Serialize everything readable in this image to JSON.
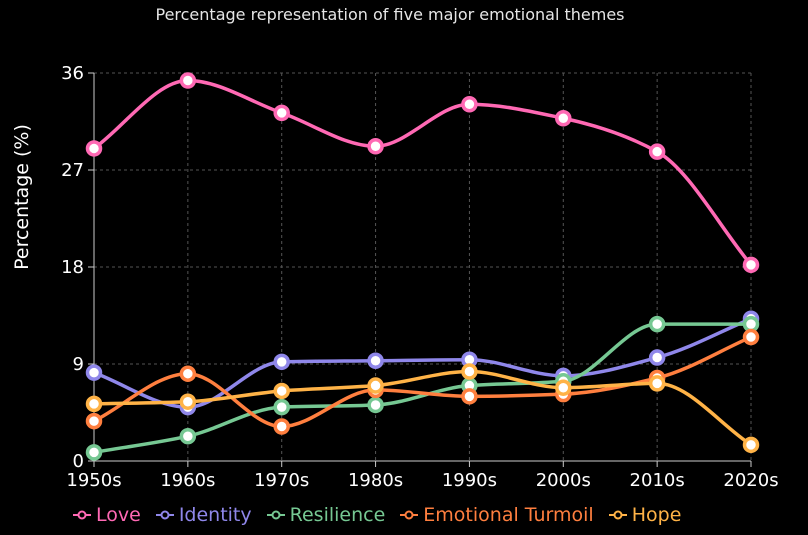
{
  "chart_data": {
    "type": "line",
    "title": "Percentage representation of five major emotional themes",
    "xlabel": "",
    "ylabel": "Percentage (%)",
    "categories": [
      "1950s",
      "1960s",
      "1970s",
      "1980s",
      "1990s",
      "2000s",
      "2010s",
      "2020s"
    ],
    "ylim": [
      0,
      36
    ],
    "yticks": [
      "0",
      "9",
      "18",
      "27",
      "36"
    ],
    "grid": true,
    "legend_position": "bottom",
    "series": [
      {
        "name": "Love",
        "color": "#ff69b4",
        "values": [
          29.0,
          35.3,
          32.3,
          29.2,
          33.1,
          31.8,
          28.7,
          18.2
        ]
      },
      {
        "name": "Identity",
        "color": "#8f87ea",
        "values": [
          8.2,
          5.0,
          9.2,
          9.3,
          9.4,
          7.9,
          9.6,
          13.2
        ]
      },
      {
        "name": "Resilience",
        "color": "#76c893",
        "values": [
          0.8,
          2.3,
          5.0,
          5.2,
          7.0,
          7.4,
          12.7,
          12.7
        ]
      },
      {
        "name": "Emotional Turmoil",
        "color": "#ff7f3f",
        "values": [
          3.7,
          8.1,
          3.2,
          6.6,
          6.0,
          6.2,
          7.7,
          11.5
        ]
      },
      {
        "name": "Hope",
        "color": "#ffb347",
        "values": [
          5.3,
          5.5,
          6.5,
          7.0,
          8.3,
          6.8,
          7.2,
          1.5
        ]
      }
    ]
  }
}
